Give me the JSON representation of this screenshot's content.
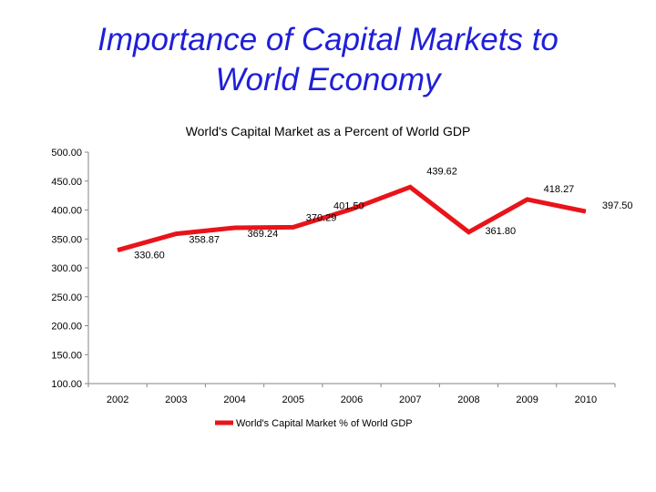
{
  "slide": {
    "title_line1": "Importance of Capital Markets to",
    "title_line2": "World Economy"
  },
  "chart_data": {
    "type": "line",
    "title": "World's Capital Market as a Percent of World GDP",
    "xlabel": "",
    "ylabel": "",
    "categories": [
      "2002",
      "2003",
      "2004",
      "2005",
      "2006",
      "2007",
      "2008",
      "2009",
      "2010"
    ],
    "series": [
      {
        "name": "World's Capital Market % of World GDP",
        "values": [
          330.6,
          358.87,
          369.24,
          370.29,
          401.5,
          439.62,
          361.8,
          418.27,
          397.5
        ],
        "labels": [
          "330.60",
          "358.87",
          "369.24",
          "370.29",
          "401.50",
          "439.62",
          "361.80",
          "418.27",
          "397.50"
        ],
        "color": "#e8141a"
      }
    ],
    "ylim": [
      100,
      500
    ],
    "yticks": [
      100,
      150,
      200,
      250,
      300,
      350,
      400,
      450,
      500
    ],
    "ytick_labels": [
      "100.00",
      "150.00",
      "200.00",
      "250.00",
      "300.00",
      "350.00",
      "400.00",
      "450.00",
      "500.00"
    ],
    "grid": false,
    "legend_position": "bottom"
  }
}
